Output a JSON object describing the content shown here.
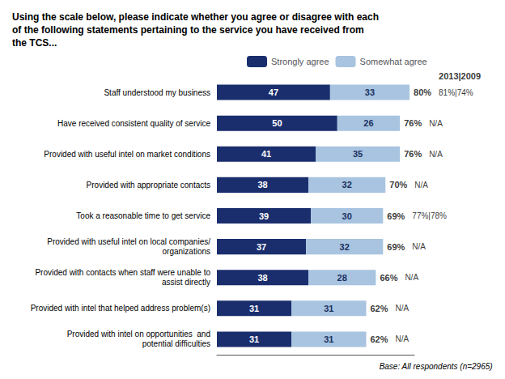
{
  "chart_data": {
    "type": "bar",
    "orientation": "horizontal",
    "stacked": true,
    "title": "Using the scale below, please indicate whether you agree or disagree with each\nof the following statements pertaining to the service you have received from\nthe TCS...",
    "categories": [
      "Staff understood my business",
      "Have received consistent quality of service",
      "Provided with useful intel on market conditions",
      "Provided with appropriate contacts",
      "Took a reasonable time to get service",
      "Provided with useful intel on local companies/\norganizations",
      "Provided with contacts when staff were unable to\nassist directly",
      "Provided with intel that helped address problem(s)",
      "Provided with intel on opportunities  and\npotential difficulties"
    ],
    "series": [
      {
        "name": "Strongly agree",
        "color": "#1a2e6e",
        "values": [
          47,
          50,
          41,
          38,
          39,
          37,
          38,
          31,
          31
        ]
      },
      {
        "name": "Somewhat agree",
        "color": "#a8c4e0",
        "values": [
          33,
          26,
          35,
          32,
          30,
          32,
          28,
          31,
          31
        ]
      }
    ],
    "data_labels": true,
    "totals": [
      80,
      76,
      76,
      70,
      69,
      69,
      66,
      62,
      62
    ],
    "total_labels": [
      "80%",
      "76%",
      "76%",
      "70%",
      "69%",
      "69%",
      "66%",
      "62%",
      "62%"
    ],
    "prev_years": [
      "81%|74%",
      "N/A",
      "N/A",
      "N/A",
      "77%|78%",
      "N/A",
      "N/A",
      "N/A",
      "N/A"
    ],
    "year_header": "2013|2009",
    "note": "Base: All respondents (n=2965)",
    "xlim": [
      0,
      82
    ],
    "tick_labels": "y",
    "grid": false,
    "legend": "top"
  }
}
